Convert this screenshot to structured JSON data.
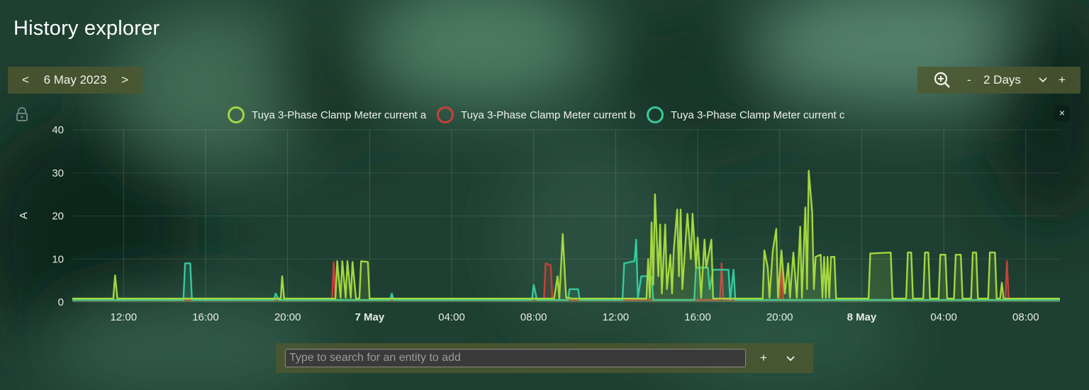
{
  "app": {
    "title": "History explorer"
  },
  "date_nav": {
    "prev": "<",
    "date": "6 May 2023",
    "next": ">"
  },
  "zoom": {
    "minus": "-",
    "range": "2 Days",
    "plus": "+"
  },
  "legend_close": "×",
  "search": {
    "placeholder": "Type to search for an entity to add",
    "value": "",
    "add": "+"
  },
  "colors": {
    "a": "#a4d640",
    "b": "#c8413a",
    "c": "#36c99d"
  },
  "chart_data": {
    "type": "line",
    "ylabel": "A",
    "ylim": [
      0,
      40
    ],
    "yticks": [
      0,
      10,
      20,
      30,
      40
    ],
    "xlim": [
      "2023-05-06 09:30",
      "2023-05-08 09:40"
    ],
    "xticks": [
      {
        "t": "2023-05-06 12:00",
        "label": "12:00",
        "bold": false
      },
      {
        "t": "2023-05-06 16:00",
        "label": "16:00",
        "bold": false
      },
      {
        "t": "2023-05-06 20:00",
        "label": "20:00",
        "bold": false
      },
      {
        "t": "2023-05-07 00:00",
        "label": "7 May",
        "bold": true
      },
      {
        "t": "2023-05-07 04:00",
        "label": "04:00",
        "bold": false
      },
      {
        "t": "2023-05-07 08:00",
        "label": "08:00",
        "bold": false
      },
      {
        "t": "2023-05-07 12:00",
        "label": "12:00",
        "bold": false
      },
      {
        "t": "2023-05-07 16:00",
        "label": "16:00",
        "bold": false
      },
      {
        "t": "2023-05-07 20:00",
        "label": "20:00",
        "bold": false
      },
      {
        "t": "2023-05-08 00:00",
        "label": "8 May",
        "bold": true
      },
      {
        "t": "2023-05-08 04:00",
        "label": "04:00",
        "bold": false
      },
      {
        "t": "2023-05-08 08:00",
        "label": "08:00",
        "bold": false
      }
    ],
    "series": [
      {
        "name": "Tuya 3-Phase Clamp Meter current a",
        "color": "#a4d640",
        "points": [
          [
            "2023-05-06 09:30",
            0.8
          ],
          [
            "2023-05-06 11:30",
            0.8
          ],
          [
            "2023-05-06 11:35",
            6.2
          ],
          [
            "2023-05-06 11:42",
            0.8
          ],
          [
            "2023-05-06 19:40",
            0.8
          ],
          [
            "2023-05-06 19:44",
            6.0
          ],
          [
            "2023-05-06 19:50",
            0.8
          ],
          [
            "2023-05-06 22:20",
            0.8
          ],
          [
            "2023-05-06 22:25",
            9.5
          ],
          [
            "2023-05-06 22:35",
            1.0
          ],
          [
            "2023-05-06 22:40",
            9.5
          ],
          [
            "2023-05-06 22:50",
            1.0
          ],
          [
            "2023-05-06 22:55",
            9.5
          ],
          [
            "2023-05-06 23:05",
            1.0
          ],
          [
            "2023-05-06 23:10",
            9.3
          ],
          [
            "2023-05-06 23:20",
            0.8
          ],
          [
            "2023-05-06 23:30",
            0.8
          ],
          [
            "2023-05-06 23:35",
            9.5
          ],
          [
            "2023-05-06 23:55",
            9.3
          ],
          [
            "2023-05-07 00:00",
            0.8
          ],
          [
            "2023-05-07 09:00",
            0.8
          ],
          [
            "2023-05-07 09:10",
            6.0
          ],
          [
            "2023-05-07 09:15",
            0.8
          ],
          [
            "2023-05-07 09:25",
            15.8
          ],
          [
            "2023-05-07 09:35",
            1.0
          ],
          [
            "2023-05-07 09:45",
            1.0
          ],
          [
            "2023-05-07 09:50",
            0.8
          ],
          [
            "2023-05-07 13:30",
            0.8
          ],
          [
            "2023-05-07 13:35",
            10.0
          ],
          [
            "2023-05-07 13:40",
            1.0
          ],
          [
            "2023-05-07 13:45",
            18.5
          ],
          [
            "2023-05-07 13:50",
            4.0
          ],
          [
            "2023-05-07 13:55",
            25.0
          ],
          [
            "2023-05-07 14:05",
            6.0
          ],
          [
            "2023-05-07 14:10",
            18.0
          ],
          [
            "2023-05-07 14:15",
            2.0
          ],
          [
            "2023-05-07 14:25",
            18.0
          ],
          [
            "2023-05-07 14:30",
            3.0
          ],
          [
            "2023-05-07 14:40",
            11.0
          ],
          [
            "2023-05-07 14:45",
            2.0
          ],
          [
            "2023-05-07 14:50",
            12.0
          ],
          [
            "2023-05-07 15:00",
            21.5
          ],
          [
            "2023-05-07 15:05",
            6.0
          ],
          [
            "2023-05-07 15:10",
            21.5
          ],
          [
            "2023-05-07 15:15",
            3.0
          ],
          [
            "2023-05-07 15:30",
            20.5
          ],
          [
            "2023-05-07 15:40",
            10.0
          ],
          [
            "2023-05-07 15:45",
            20.5
          ],
          [
            "2023-05-07 15:55",
            8.0
          ],
          [
            "2023-05-07 16:00",
            15.0
          ],
          [
            "2023-05-07 16:10",
            1.0
          ],
          [
            "2023-05-07 16:20",
            14.5
          ],
          [
            "2023-05-07 16:25",
            8.0
          ],
          [
            "2023-05-07 16:40",
            14.5
          ],
          [
            "2023-05-07 16:45",
            0.8
          ],
          [
            "2023-05-07 19:10",
            0.8
          ],
          [
            "2023-05-07 19:15",
            12.0
          ],
          [
            "2023-05-07 19:25",
            8.0
          ],
          [
            "2023-05-07 19:30",
            1.0
          ],
          [
            "2023-05-07 19:40",
            12.0
          ],
          [
            "2023-05-07 19:50",
            17.0
          ],
          [
            "2023-05-07 19:55",
            1.0
          ],
          [
            "2023-05-07 20:05",
            12.0
          ],
          [
            "2023-05-07 20:15",
            2.0
          ],
          [
            "2023-05-07 20:25",
            9.0
          ],
          [
            "2023-05-07 20:30",
            1.0
          ],
          [
            "2023-05-07 20:40",
            11.5
          ],
          [
            "2023-05-07 20:50",
            1.0
          ],
          [
            "2023-05-07 21:00",
            17.5
          ],
          [
            "2023-05-07 21:05",
            1.0
          ],
          [
            "2023-05-07 21:15",
            22.0
          ],
          [
            "2023-05-07 21:20",
            3.0
          ],
          [
            "2023-05-07 21:25",
            30.5
          ],
          [
            "2023-05-07 21:35",
            21.0
          ],
          [
            "2023-05-07 21:40",
            3.0
          ],
          [
            "2023-05-07 21:45",
            10.5
          ],
          [
            "2023-05-07 22:00",
            11.0
          ],
          [
            "2023-05-07 22:05",
            1.0
          ],
          [
            "2023-05-07 22:10",
            10.5
          ],
          [
            "2023-05-07 22:15",
            1.0
          ],
          [
            "2023-05-07 22:20",
            10.5
          ],
          [
            "2023-05-07 22:25",
            1.0
          ],
          [
            "2023-05-07 22:30",
            10.5
          ],
          [
            "2023-05-07 22:40",
            10.5
          ],
          [
            "2023-05-07 22:45",
            0.8
          ],
          [
            "2023-05-08 00:20",
            0.8
          ],
          [
            "2023-05-08 00:25",
            11.3
          ],
          [
            "2023-05-08 01:25",
            11.5
          ],
          [
            "2023-05-08 01:30",
            0.8
          ],
          [
            "2023-05-08 02:10",
            0.8
          ],
          [
            "2023-05-08 02:15",
            11.5
          ],
          [
            "2023-05-08 02:25",
            11.5
          ],
          [
            "2023-05-08 02:30",
            0.8
          ],
          [
            "2023-05-08 03:00",
            0.8
          ],
          [
            "2023-05-08 03:05",
            11.5
          ],
          [
            "2023-05-08 03:15",
            11.5
          ],
          [
            "2023-05-08 03:20",
            0.8
          ],
          [
            "2023-05-08 03:45",
            0.8
          ],
          [
            "2023-05-08 03:50",
            11.0
          ],
          [
            "2023-05-08 04:05",
            11.0
          ],
          [
            "2023-05-08 04:10",
            0.8
          ],
          [
            "2023-05-08 04:30",
            0.8
          ],
          [
            "2023-05-08 04:35",
            11.0
          ],
          [
            "2023-05-08 04:50",
            11.0
          ],
          [
            "2023-05-08 04:55",
            0.8
          ],
          [
            "2023-05-08 05:20",
            0.8
          ],
          [
            "2023-05-08 05:25",
            11.5
          ],
          [
            "2023-05-08 05:35",
            11.5
          ],
          [
            "2023-05-08 05:40",
            0.8
          ],
          [
            "2023-05-08 06:10",
            0.8
          ],
          [
            "2023-05-08 06:15",
            11.5
          ],
          [
            "2023-05-08 06:30",
            11.5
          ],
          [
            "2023-05-08 06:35",
            0.8
          ],
          [
            "2023-05-08 06:45",
            0.8
          ],
          [
            "2023-05-08 06:50",
            4.5
          ],
          [
            "2023-05-08 06:55",
            0.8
          ],
          [
            "2023-05-08 09:40",
            0.8
          ]
        ]
      },
      {
        "name": "Tuya 3-Phase Clamp Meter current b",
        "color": "#c8413a",
        "points": [
          [
            "2023-05-06 09:30",
            0.5
          ],
          [
            "2023-05-06 22:10",
            0.5
          ],
          [
            "2023-05-06 22:15",
            9.3
          ],
          [
            "2023-05-06 22:20",
            0.5
          ],
          [
            "2023-05-07 08:30",
            0.5
          ],
          [
            "2023-05-07 08:35",
            9.0
          ],
          [
            "2023-05-07 08:50",
            8.5
          ],
          [
            "2023-05-07 08:55",
            0.5
          ],
          [
            "2023-05-07 17:05",
            0.5
          ],
          [
            "2023-05-07 17:10",
            9.0
          ],
          [
            "2023-05-07 17:15",
            0.5
          ],
          [
            "2023-05-07 20:00",
            0.5
          ],
          [
            "2023-05-07 20:05",
            10.0
          ],
          [
            "2023-05-07 20:10",
            0.5
          ],
          [
            "2023-05-08 07:00",
            0.5
          ],
          [
            "2023-05-08 07:05",
            9.5
          ],
          [
            "2023-05-08 07:10",
            0.5
          ],
          [
            "2023-05-08 09:40",
            0.5
          ]
        ]
      },
      {
        "name": "Tuya 3-Phase Clamp Meter current c",
        "color": "#36c99d",
        "points": [
          [
            "2023-05-06 09:30",
            0.5
          ],
          [
            "2023-05-06 14:55",
            0.5
          ],
          [
            "2023-05-06 15:00",
            9.0
          ],
          [
            "2023-05-06 15:15",
            9.0
          ],
          [
            "2023-05-06 15:20",
            0.5
          ],
          [
            "2023-05-06 19:20",
            0.5
          ],
          [
            "2023-05-06 19:25",
            2.0
          ],
          [
            "2023-05-06 19:35",
            0.5
          ],
          [
            "2023-05-07 01:00",
            0.5
          ],
          [
            "2023-05-07 01:05",
            2.0
          ],
          [
            "2023-05-07 01:10",
            0.5
          ],
          [
            "2023-05-07 07:55",
            0.5
          ],
          [
            "2023-05-07 08:00",
            4.0
          ],
          [
            "2023-05-07 08:10",
            0.5
          ],
          [
            "2023-05-07 09:40",
            0.5
          ],
          [
            "2023-05-07 09:45",
            3.0
          ],
          [
            "2023-05-07 10:10",
            3.0
          ],
          [
            "2023-05-07 10:15",
            0.5
          ],
          [
            "2023-05-07 12:20",
            0.5
          ],
          [
            "2023-05-07 12:25",
            9.0
          ],
          [
            "2023-05-07 12:55",
            9.5
          ],
          [
            "2023-05-07 13:00",
            14.5
          ],
          [
            "2023-05-07 13:05",
            1.0
          ],
          [
            "2023-05-07 13:15",
            6.0
          ],
          [
            "2023-05-07 13:45",
            6.0
          ],
          [
            "2023-05-07 13:50",
            0.5
          ],
          [
            "2023-05-07 15:50",
            0.5
          ],
          [
            "2023-05-07 15:55",
            8.0
          ],
          [
            "2023-05-07 16:30",
            8.0
          ],
          [
            "2023-05-07 16:35",
            3.0
          ],
          [
            "2023-05-07 16:45",
            7.5
          ],
          [
            "2023-05-07 17:30",
            7.5
          ],
          [
            "2023-05-07 17:35",
            0.5
          ],
          [
            "2023-05-07 17:45",
            7.5
          ],
          [
            "2023-05-07 17:50",
            0.5
          ],
          [
            "2023-05-08 09:40",
            0.5
          ]
        ]
      }
    ]
  }
}
